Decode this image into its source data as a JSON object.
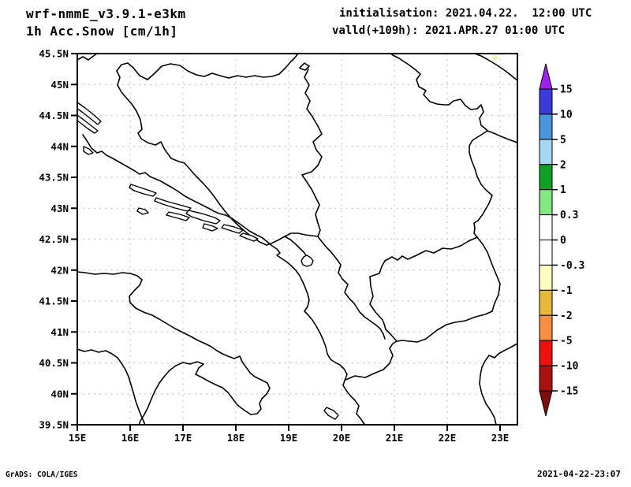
{
  "header": {
    "model_title": "wrf-nmmE_v3.9.1-e3km",
    "product_title": "1h Acc.Snow [cm/1h]",
    "init_line": "initialisation: 2021.04.22.  12:00 UTC",
    "valid_line": "valld(+109h): 2021.APR.27 01:00 UTC"
  },
  "footer": {
    "left": "GrADS: COLA/IGES",
    "right": "2021-04-22-23:07"
  },
  "map": {
    "lat_ticks": [
      "45.5N",
      "45N",
      "44.5N",
      "44N",
      "43.5N",
      "43N",
      "42.5N",
      "42N",
      "41.5N",
      "41N",
      "40.5N",
      "40N",
      "39.5N"
    ],
    "lon_ticks": [
      "15E",
      "16E",
      "17E",
      "18E",
      "19E",
      "20E",
      "21E",
      "22E",
      "23E"
    ],
    "grid_color": "#b8b8b8",
    "outline_color": "#000000"
  },
  "chart_data": {
    "type": "map",
    "title": "1h Acc.Snow [cm/1h]",
    "units": "cm/1h",
    "lon_range": [
      "15E",
      "23E"
    ],
    "lat_range": [
      "39.5N",
      "45.5N"
    ],
    "colorbar": {
      "labels": [
        "15",
        "10",
        "5",
        "2",
        "1",
        "0.3",
        "0",
        "-0.3",
        "-1",
        "-2",
        "-5",
        "-10",
        "-15"
      ],
      "segment_colors_top_to_bottom": [
        "#3b3bdb",
        "#4a96dd",
        "#a6d8f2",
        "#10a028",
        "#82e882",
        "#ffffff",
        "#ffffff",
        "#ffffc0",
        "#e8b83a",
        "#f79040",
        "#ee0f0f",
        "#aa1111"
      ],
      "arrow_top_color": "#a020f0",
      "arrow_bottom_color": "#7e0e0e"
    },
    "data_marks": [
      {
        "approx_lon": "22.9E",
        "approx_lat": "45.4N",
        "value_bin": "-0.3 to -1",
        "color": "#f6f6bb"
      }
    ]
  }
}
